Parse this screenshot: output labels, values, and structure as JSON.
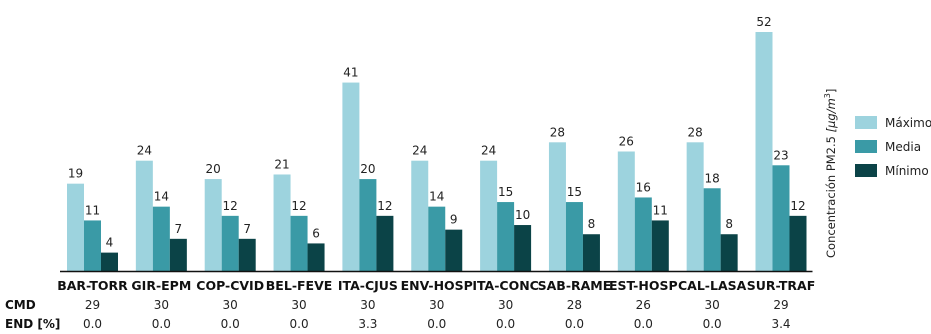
{
  "chart_data": {
    "type": "bar",
    "categories": [
      "BAR-TORR",
      "GIR-EPM",
      "COP-CVID",
      "BEL-FEVE",
      "ITA-CJUS",
      "ENV-HOSP",
      "ITA-CONC",
      "SAB-RAME",
      "EST-HOSP",
      "CAL-LASA",
      "SUR-TRAF"
    ],
    "series": [
      {
        "name": "Máximo",
        "color": "#9dd3de",
        "values": [
          19,
          24,
          20,
          21,
          41,
          24,
          24,
          28,
          26,
          28,
          52
        ]
      },
      {
        "name": "Media",
        "color": "#3a9aa6",
        "values": [
          11,
          14,
          12,
          12,
          20,
          14,
          15,
          15,
          16,
          18,
          23
        ]
      },
      {
        "name": "Mínimo",
        "color": "#0b4347",
        "values": [
          4,
          7,
          7,
          6,
          12,
          9,
          10,
          8,
          11,
          8,
          12
        ]
      }
    ],
    "ylabel_text": "Concentración PM2.5 ",
    "ylabel_unit": "[μg/m",
    "ylabel_exp": "3",
    "ylabel_close": "]",
    "ylim": [
      0,
      52
    ],
    "grid": false,
    "legend_position": "right",
    "table_rows": [
      {
        "label": "CMD",
        "values": [
          "29",
          "30",
          "30",
          "30",
          "30",
          "30",
          "30",
          "28",
          "26",
          "30",
          "29"
        ]
      },
      {
        "label": "END [%]",
        "values": [
          "0.0",
          "0.0",
          "0.0",
          "0.0",
          "3.3",
          "0.0",
          "0.0",
          "0.0",
          "0.0",
          "0.0",
          "3.4"
        ]
      }
    ]
  }
}
